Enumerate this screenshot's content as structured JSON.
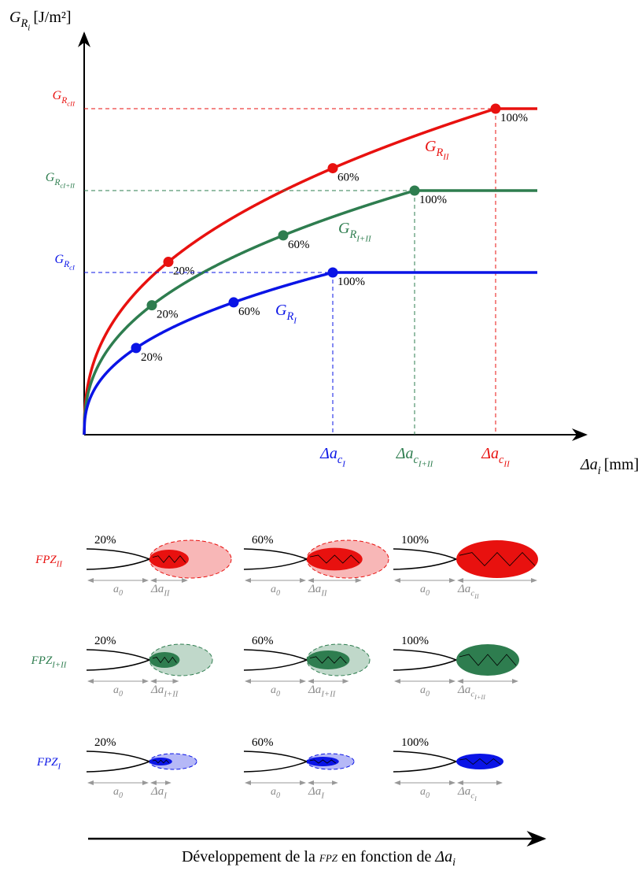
{
  "y_axis_label": {
    "main": "G",
    "sub": "R",
    "subsub": "i",
    "unit": "[J/m²]"
  },
  "x_axis_label": {
    "main": "Δa",
    "sub": "i",
    "unit": "[mm]"
  },
  "curves": [
    {
      "color": "#e8110f",
      "name": {
        "main": "G",
        "sub": "R",
        "subsub": "II"
      },
      "level": {
        "main": "G",
        "sub": "R",
        "subsub": "cII"
      },
      "critical": {
        "main": "Δa",
        "sub": "c",
        "subsub": "II"
      },
      "points": [
        "20%",
        "60%",
        "100%"
      ]
    },
    {
      "color": "#2e7d4f",
      "name": {
        "main": "G",
        "sub": "R",
        "subsub": "I+II"
      },
      "level": {
        "main": "G",
        "sub": "R",
        "subsub": "cI+II"
      },
      "critical": {
        "main": "Δa",
        "sub": "c",
        "subsub": "I+II"
      },
      "points": [
        "20%",
        "60%",
        "100%"
      ]
    },
    {
      "color": "#0a14e6",
      "name": {
        "main": "G",
        "sub": "R",
        "subsub": "I"
      },
      "level": {
        "main": "G",
        "sub": "R",
        "subsub": "cI"
      },
      "critical": {
        "main": "Δa",
        "sub": "c",
        "subsub": "I"
      },
      "points": [
        "20%",
        "60%",
        "100%"
      ]
    }
  ],
  "fpz_rows": [
    {
      "label": {
        "main": "FPZ",
        "sub": "II"
      },
      "cells": [
        {
          "percent": "20%",
          "a0": {
            "main": "a",
            "sub": "0"
          },
          "da": {
            "main": "Δa",
            "sub": "II"
          }
        },
        {
          "percent": "60%",
          "a0": {
            "main": "a",
            "sub": "0"
          },
          "da": {
            "main": "Δa",
            "sub": "II"
          }
        },
        {
          "percent": "100%",
          "a0": {
            "main": "a",
            "sub": "0"
          },
          "da": {
            "main": "Δa",
            "sub": "c",
            "subsub": "II"
          }
        }
      ]
    },
    {
      "label": {
        "main": "FPZ",
        "sub": "I+II"
      },
      "cells": [
        {
          "percent": "20%",
          "a0": {
            "main": "a",
            "sub": "0"
          },
          "da": {
            "main": "Δa",
            "sub": "I+II"
          }
        },
        {
          "percent": "60%",
          "a0": {
            "main": "a",
            "sub": "0"
          },
          "da": {
            "main": "Δa",
            "sub": "I+II"
          }
        },
        {
          "percent": "100%",
          "a0": {
            "main": "a",
            "sub": "0"
          },
          "da": {
            "main": "Δa",
            "sub": "c",
            "subsub": "I+II"
          }
        }
      ]
    },
    {
      "label": {
        "main": "FPZ",
        "sub": "I"
      },
      "cells": [
        {
          "percent": "20%",
          "a0": {
            "main": "a",
            "sub": "0"
          },
          "da": {
            "main": "Δa",
            "sub": "I"
          }
        },
        {
          "percent": "60%",
          "a0": {
            "main": "a",
            "sub": "0"
          },
          "da": {
            "main": "Δa",
            "sub": "I"
          }
        },
        {
          "percent": "100%",
          "a0": {
            "main": "a",
            "sub": "0"
          },
          "da": {
            "main": "Δa",
            "sub": "c",
            "subsub": "I"
          }
        }
      ]
    }
  ],
  "caption": {
    "before": "Développement de la",
    "fpz": "FPZ",
    "after": "en fonction de",
    "main": "Δa",
    "sub": "i"
  }
}
